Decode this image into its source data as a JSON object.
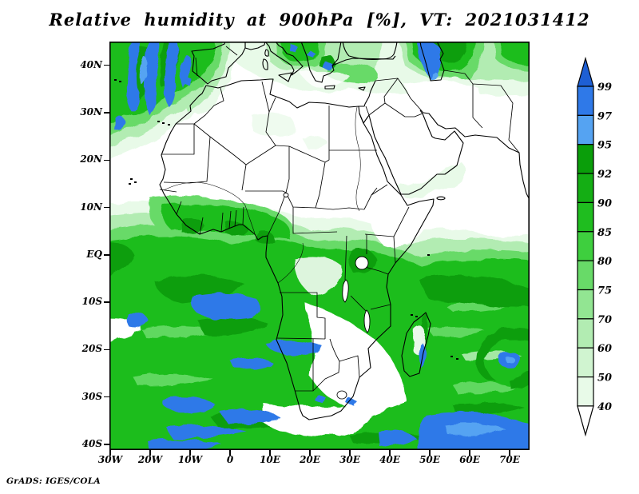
{
  "title": "Relative humidity at 900hPa [%], VT: 2021031412",
  "attribution": "GrADS: IGES/COLA",
  "axes": {
    "lat": [
      "40N",
      "30N",
      "20N",
      "10N",
      "EQ",
      "10S",
      "20S",
      "30S",
      "40S"
    ],
    "lon": [
      "30W",
      "20W",
      "10W",
      "0",
      "10E",
      "20E",
      "30E",
      "40E",
      "50E",
      "60E",
      "70E"
    ]
  },
  "colorbar": {
    "labels": [
      "99",
      "97",
      "95",
      "92",
      "90",
      "85",
      "80",
      "75",
      "70",
      "60",
      "50",
      "40"
    ],
    "segments": [
      {
        "label": ">99",
        "color": "#1e5fd4"
      },
      {
        "label": "97-99",
        "color": "#2f79e8"
      },
      {
        "label": "95-97",
        "color": "#55a3f2"
      },
      {
        "label": "92-95",
        "color": "#0a9e0a"
      },
      {
        "label": "90-92",
        "color": "#14ae14"
      },
      {
        "label": "85-90",
        "color": "#1fbd1f"
      },
      {
        "label": "80-85",
        "color": "#3ecf3e"
      },
      {
        "label": "75-80",
        "color": "#68da68"
      },
      {
        "label": "70-75",
        "color": "#92e592"
      },
      {
        "label": "60-70",
        "color": "#b2ecb2"
      },
      {
        "label": "50-60",
        "color": "#d0f4d0"
      },
      {
        "label": "40-50",
        "color": "#e8fae8"
      },
      {
        "label": "<40",
        "color": "#ffffff"
      }
    ]
  },
  "chart_data": {
    "type": "heatmap",
    "title": "Relative humidity at 900hPa [%], VT: 2021031412",
    "variable": "Relative humidity",
    "pressure_level": "900hPa",
    "units": "%",
    "valid_time": "2021031412",
    "extent": {
      "lon": [
        "30W",
        "75E"
      ],
      "lat": [
        "40S",
        "45N"
      ]
    },
    "contour_levels": [
      40,
      50,
      60,
      70,
      75,
      80,
      85,
      90,
      92,
      95,
      97,
      99
    ],
    "legend_position": "right",
    "renderer": "GrADS: IGES/COLA"
  }
}
